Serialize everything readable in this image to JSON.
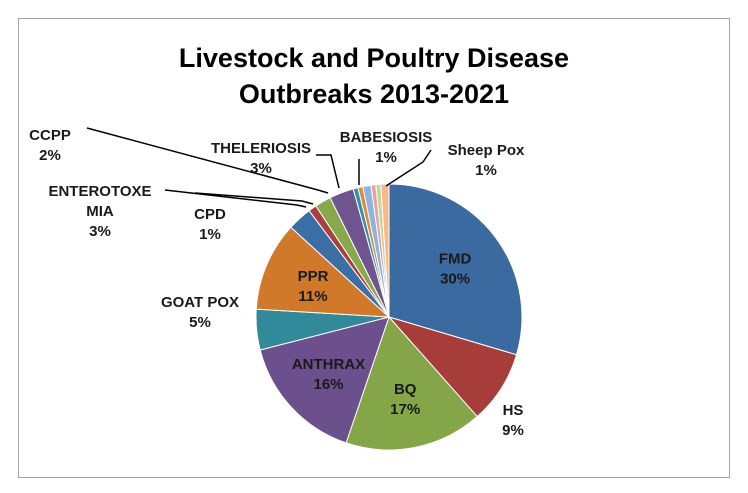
{
  "chart_data": {
    "type": "pie",
    "title_lines": [
      "Livestock and Poultry Disease",
      "Outbreaks 2013-2021"
    ],
    "start_angle_deg": 0,
    "slices": [
      {
        "label": "FMD",
        "value": 30,
        "pct": "30%",
        "color": "#3b6aa0",
        "label_inside": true
      },
      {
        "label": "HS",
        "value": 9,
        "pct": "9%",
        "color": "#a63d3a",
        "label_inside": false
      },
      {
        "label": "BQ",
        "value": 17,
        "pct": "17%",
        "color": "#84a548",
        "label_inside": true
      },
      {
        "label": "ANTHRAX",
        "value": 16,
        "pct": "16%",
        "color": "#6c4f8d",
        "label_inside": true
      },
      {
        "label": "GOAT POX",
        "value": 5,
        "pct": "5%",
        "color": "#31899a",
        "label_inside": false
      },
      {
        "label": "PPR",
        "value": 11,
        "pct": "11%",
        "color": "#d0792b",
        "label_inside": true
      },
      {
        "label": "ENTEROTOXEMIA",
        "value": 3,
        "pct": "3%",
        "color": "#3c6ea6",
        "label_inside": false
      },
      {
        "label": "CPD",
        "value": 1,
        "pct": "1%",
        "color": "#a8403c",
        "label_inside": false
      },
      {
        "label": "CCPP",
        "value": 2,
        "pct": "2%",
        "color": "#87a94c",
        "label_inside": false
      },
      {
        "label": "THELERIOSIS",
        "value": 3,
        "pct": "3%",
        "color": "#6f5490",
        "label_inside": false
      },
      {
        "label": "",
        "value": 0.6,
        "pct": "",
        "color": "#2f93ad",
        "label_inside": false
      },
      {
        "label": "",
        "value": 0.6,
        "pct": "",
        "color": "#e08a3a",
        "label_inside": false
      },
      {
        "label": "BABESIOSIS",
        "value": 1,
        "pct": "1%",
        "color": "#8eb4e3",
        "label_inside": false
      },
      {
        "label": "",
        "value": 0.6,
        "pct": "",
        "color": "#e6a3a0",
        "label_inside": false
      },
      {
        "label": "",
        "value": 0.6,
        "pct": "",
        "color": "#c3d69b",
        "label_inside": false
      },
      {
        "label": "Sheep Pox",
        "value": 1,
        "pct": "1%",
        "color": "#f7b98a",
        "label_inside": false
      }
    ],
    "outside_labels": [
      {
        "slice": "HS",
        "lines": [
          "HS",
          "9%"
        ]
      },
      {
        "slice": "GOAT POX",
        "lines": [
          "GOAT POX",
          "5%"
        ]
      },
      {
        "slice": "ENTEROTOXEMIA",
        "lines": [
          "ENTEROTOXE",
          "MIA",
          "3%"
        ]
      },
      {
        "slice": "CPD",
        "lines": [
          "CPD",
          "1%"
        ]
      },
      {
        "slice": "CCPP",
        "lines": [
          "CCPP",
          "2%"
        ]
      },
      {
        "slice": "THELERIOSIS",
        "lines": [
          "THELERIOSIS",
          "3%"
        ]
      },
      {
        "slice": "BABESIOSIS",
        "lines": [
          "BABESIOSIS",
          "1%"
        ]
      },
      {
        "slice": "Sheep Pox",
        "lines": [
          "Sheep Pox",
          "1%"
        ]
      }
    ]
  }
}
